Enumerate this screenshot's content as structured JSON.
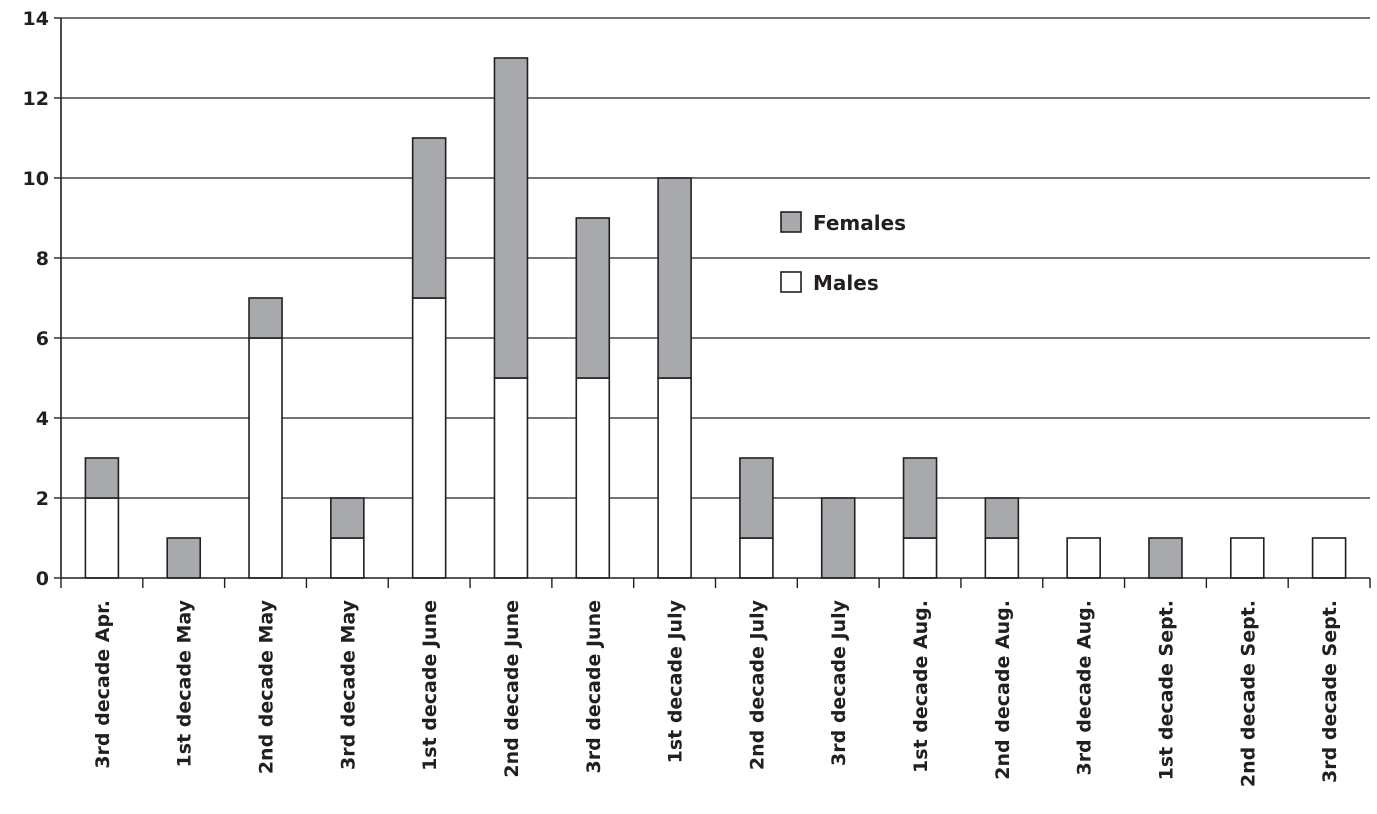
{
  "chart_data": {
    "type": "bar",
    "stacked": true,
    "title": "",
    "xlabel": "",
    "ylabel": "",
    "ylim": [
      0,
      14
    ],
    "yticks": [
      0,
      2,
      4,
      6,
      8,
      10,
      12,
      14
    ],
    "grid": true,
    "legend_placement": "upper-center-right",
    "categories": [
      "3rd decade Apr.",
      "1st decade May",
      "2nd decade May",
      "3rd decade May",
      "1st decade June",
      "2nd decade June",
      "3rd decade June",
      "1st decade July",
      "2nd decade July",
      "3rd decade July",
      "1st decade Aug.",
      "2nd decade Aug.",
      "3rd decade Aug.",
      "1st decade Sept.",
      "2nd decade Sept.",
      "3rd decade Sept."
    ],
    "series": [
      {
        "name": "Males",
        "color": "#ffffff",
        "values": [
          2,
          0,
          6,
          1,
          7,
          5,
          5,
          5,
          1,
          0,
          1,
          1,
          1,
          0,
          1,
          1
        ]
      },
      {
        "name": "Females",
        "color": "#a7a9ac",
        "values": [
          1,
          1,
          1,
          1,
          4,
          8,
          4,
          5,
          2,
          2,
          2,
          1,
          0,
          1,
          0,
          0
        ]
      }
    ],
    "legend_order": [
      "Females",
      "Males"
    ]
  }
}
